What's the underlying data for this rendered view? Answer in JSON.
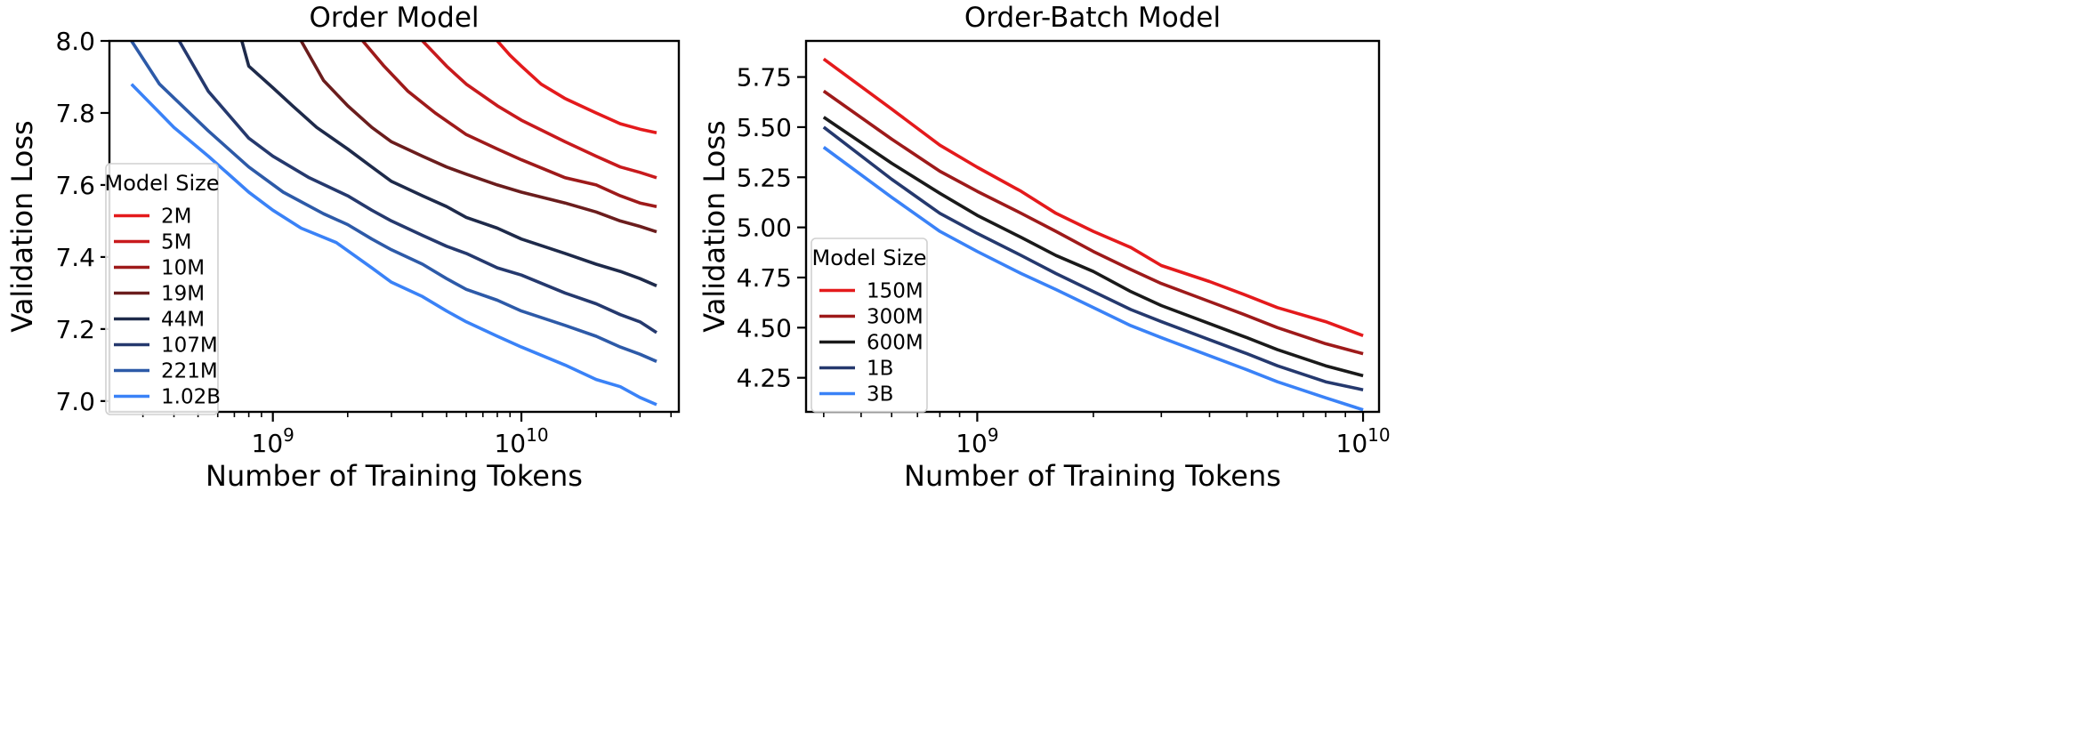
{
  "chart_data": [
    {
      "type": "line",
      "title": "Order Model",
      "xlabel": "Number of Training Tokens",
      "ylabel": "Validation Loss",
      "xscale": "log",
      "xlim": [
        220000000.0,
        43000000000.0
      ],
      "ylim": [
        6.97,
        8.0
      ],
      "yticks": [
        7.0,
        7.2,
        7.4,
        7.6,
        7.8,
        8.0
      ],
      "ytick_labels": [
        "7.0",
        "7.2",
        "7.4",
        "7.6",
        "7.8",
        "8.0"
      ],
      "xticks_major": [
        1000000000.0,
        10000000000.0
      ],
      "xtick_labels": [
        {
          "base": "10",
          "exp": "9"
        },
        {
          "base": "10",
          "exp": "10"
        }
      ],
      "grid": false,
      "legend": {
        "title": "Model Size",
        "position": "center-left"
      },
      "series": [
        {
          "name": "2M",
          "color": "#e41a1c",
          "x": [
            8000000000.0,
            9000000000.0,
            10000000000.0,
            12000000000.0,
            15000000000.0,
            20000000000.0,
            25000000000.0,
            30000000000.0,
            35000000000.0
          ],
          "y": [
            8.0,
            7.96,
            7.93,
            7.88,
            7.84,
            7.8,
            7.77,
            7.755,
            7.745
          ]
        },
        {
          "name": "5M",
          "color": "#c81a1d",
          "x": [
            4000000000.0,
            5000000000.0,
            6000000000.0,
            8000000000.0,
            10000000000.0,
            15000000000.0,
            20000000000.0,
            25000000000.0,
            30000000000.0,
            35000000000.0
          ],
          "y": [
            8.0,
            7.93,
            7.88,
            7.82,
            7.78,
            7.72,
            7.68,
            7.65,
            7.635,
            7.62
          ]
        },
        {
          "name": "10M",
          "color": "#9e1a1a",
          "x": [
            2300000000.0,
            2800000000.0,
            3500000000.0,
            4500000000.0,
            6000000000.0,
            8000000000.0,
            10000000000.0,
            15000000000.0,
            20000000000.0,
            25000000000.0,
            30000000000.0,
            35000000000.0
          ],
          "y": [
            8.0,
            7.93,
            7.86,
            7.8,
            7.74,
            7.7,
            7.67,
            7.62,
            7.6,
            7.57,
            7.55,
            7.54
          ]
        },
        {
          "name": "19M",
          "color": "#6b1d1d",
          "x": [
            1300000000.0,
            1600000000.0,
            2000000000.0,
            2500000000.0,
            3000000000.0,
            4000000000.0,
            5000000000.0,
            6000000000.0,
            8000000000.0,
            10000000000.0,
            15000000000.0,
            20000000000.0,
            25000000000.0,
            30000000000.0,
            35000000000.0
          ],
          "y": [
            8.0,
            7.89,
            7.82,
            7.76,
            7.72,
            7.68,
            7.65,
            7.63,
            7.6,
            7.58,
            7.55,
            7.525,
            7.5,
            7.485,
            7.47
          ]
        },
        {
          "name": "44M",
          "color": "#1e2a4a",
          "x": [
            750000000.0,
            800000000.0,
            1000000000.0,
            1200000000.0,
            1500000000.0,
            2000000000.0,
            2500000000.0,
            3000000000.0,
            4000000000.0,
            5000000000.0,
            6000000000.0,
            8000000000.0,
            10000000000.0,
            15000000000.0,
            20000000000.0,
            25000000000.0,
            30000000000.0,
            35000000000.0
          ],
          "y": [
            8.0,
            7.93,
            7.87,
            7.82,
            7.76,
            7.7,
            7.65,
            7.61,
            7.57,
            7.54,
            7.51,
            7.48,
            7.45,
            7.41,
            7.38,
            7.36,
            7.34,
            7.32
          ]
        },
        {
          "name": "107M",
          "color": "#25396e",
          "x": [
            420000000.0,
            550000000.0,
            800000000.0,
            1000000000.0,
            1400000000.0,
            2000000000.0,
            2500000000.0,
            3000000000.0,
            4000000000.0,
            5000000000.0,
            6000000000.0,
            8000000000.0,
            10000000000.0,
            15000000000.0,
            20000000000.0,
            25000000000.0,
            30000000000.0,
            35000000000.0
          ],
          "y": [
            8.0,
            7.86,
            7.73,
            7.68,
            7.62,
            7.57,
            7.53,
            7.5,
            7.46,
            7.43,
            7.41,
            7.37,
            7.35,
            7.3,
            7.27,
            7.24,
            7.22,
            7.19
          ]
        },
        {
          "name": "221M",
          "color": "#2d5aa8",
          "x": [
            270000000.0,
            350000000.0,
            550000000.0,
            800000000.0,
            1100000000.0,
            1600000000.0,
            2000000000.0,
            2500000000.0,
            3000000000.0,
            4000000000.0,
            5000000000.0,
            6000000000.0,
            8000000000.0,
            10000000000.0,
            15000000000.0,
            20000000000.0,
            25000000000.0,
            30000000000.0,
            35000000000.0
          ],
          "y": [
            8.0,
            7.88,
            7.75,
            7.65,
            7.58,
            7.52,
            7.49,
            7.45,
            7.42,
            7.38,
            7.34,
            7.31,
            7.28,
            7.25,
            7.21,
            7.18,
            7.15,
            7.13,
            7.11
          ]
        },
        {
          "name": "1.02B",
          "color": "#3a82f7",
          "x": [
            270000000.0,
            400000000.0,
            550000000.0,
            800000000.0,
            1000000000.0,
            1300000000.0,
            1800000000.0,
            2500000000.0,
            3000000000.0,
            4000000000.0,
            5000000000.0,
            6000000000.0,
            8000000000.0,
            10000000000.0,
            15000000000.0,
            20000000000.0,
            25000000000.0,
            30000000000.0,
            35000000000.0
          ],
          "y": [
            7.88,
            7.76,
            7.68,
            7.58,
            7.53,
            7.48,
            7.44,
            7.37,
            7.33,
            7.29,
            7.25,
            7.22,
            7.18,
            7.15,
            7.1,
            7.06,
            7.04,
            7.01,
            6.99
          ]
        }
      ]
    },
    {
      "type": "line",
      "title": "Order-Batch Model",
      "xlabel": "Number of Training Tokens",
      "ylabel": "Validation Loss",
      "xscale": "log",
      "xlim": [
        360000000.0,
        11000000000.0
      ],
      "ylim": [
        4.08,
        5.93
      ],
      "yticks": [
        4.25,
        4.5,
        4.75,
        5.0,
        5.25,
        5.5,
        5.75
      ],
      "ytick_labels": [
        "4.25",
        "4.50",
        "4.75",
        "5.00",
        "5.25",
        "5.50",
        "5.75"
      ],
      "xticks_major": [
        1000000000.0,
        10000000000.0
      ],
      "xtick_labels": [
        {
          "base": "10",
          "exp": "9"
        },
        {
          "base": "10",
          "exp": "10"
        }
      ],
      "grid": false,
      "legend": {
        "title": "Model Size",
        "position": "lower-left"
      },
      "series": [
        {
          "name": "150M",
          "color": "#e41a1c",
          "x": [
            400000000.0,
            600000000.0,
            800000000.0,
            1000000000.0,
            1300000000.0,
            1600000000.0,
            2000000000.0,
            2500000000.0,
            3000000000.0,
            4000000000.0,
            5000000000.0,
            6000000000.0,
            8000000000.0,
            10000000000.0
          ],
          "y": [
            5.84,
            5.59,
            5.41,
            5.3,
            5.18,
            5.07,
            4.98,
            4.9,
            4.81,
            4.73,
            4.66,
            4.6,
            4.53,
            4.46
          ]
        },
        {
          "name": "300M",
          "color": "#9e1a1a",
          "x": [
            400000000.0,
            600000000.0,
            800000000.0,
            1000000000.0,
            1300000000.0,
            1600000000.0,
            2000000000.0,
            2500000000.0,
            3000000000.0,
            4000000000.0,
            5000000000.0,
            6000000000.0,
            8000000000.0,
            10000000000.0
          ],
          "y": [
            5.68,
            5.44,
            5.28,
            5.18,
            5.07,
            4.98,
            4.88,
            4.79,
            4.72,
            4.63,
            4.56,
            4.5,
            4.42,
            4.37
          ]
        },
        {
          "name": "600M",
          "color": "#1a1a1a",
          "x": [
            400000000.0,
            600000000.0,
            800000000.0,
            1000000000.0,
            1300000000.0,
            1600000000.0,
            2000000000.0,
            2500000000.0,
            3000000000.0,
            4000000000.0,
            5000000000.0,
            6000000000.0,
            8000000000.0,
            10000000000.0
          ],
          "y": [
            5.55,
            5.32,
            5.17,
            5.06,
            4.95,
            4.86,
            4.78,
            4.68,
            4.61,
            4.52,
            4.45,
            4.39,
            4.31,
            4.26
          ]
        },
        {
          "name": "1B",
          "color": "#25396e",
          "x": [
            400000000.0,
            600000000.0,
            800000000.0,
            1000000000.0,
            1300000000.0,
            1600000000.0,
            2000000000.0,
            2500000000.0,
            3000000000.0,
            4000000000.0,
            5000000000.0,
            6000000000.0,
            8000000000.0,
            10000000000.0
          ],
          "y": [
            5.5,
            5.24,
            5.07,
            4.97,
            4.86,
            4.77,
            4.68,
            4.59,
            4.53,
            4.44,
            4.37,
            4.31,
            4.23,
            4.19
          ]
        },
        {
          "name": "3B",
          "color": "#3a82f7",
          "x": [
            400000000.0,
            600000000.0,
            800000000.0,
            1000000000.0,
            1300000000.0,
            1600000000.0,
            2000000000.0,
            2500000000.0,
            3000000000.0,
            4000000000.0,
            5000000000.0,
            6000000000.0,
            8000000000.0,
            10000000000.0
          ],
          "y": [
            5.4,
            5.15,
            4.98,
            4.88,
            4.77,
            4.69,
            4.6,
            4.51,
            4.45,
            4.36,
            4.29,
            4.23,
            4.15,
            4.09
          ]
        }
      ]
    }
  ]
}
